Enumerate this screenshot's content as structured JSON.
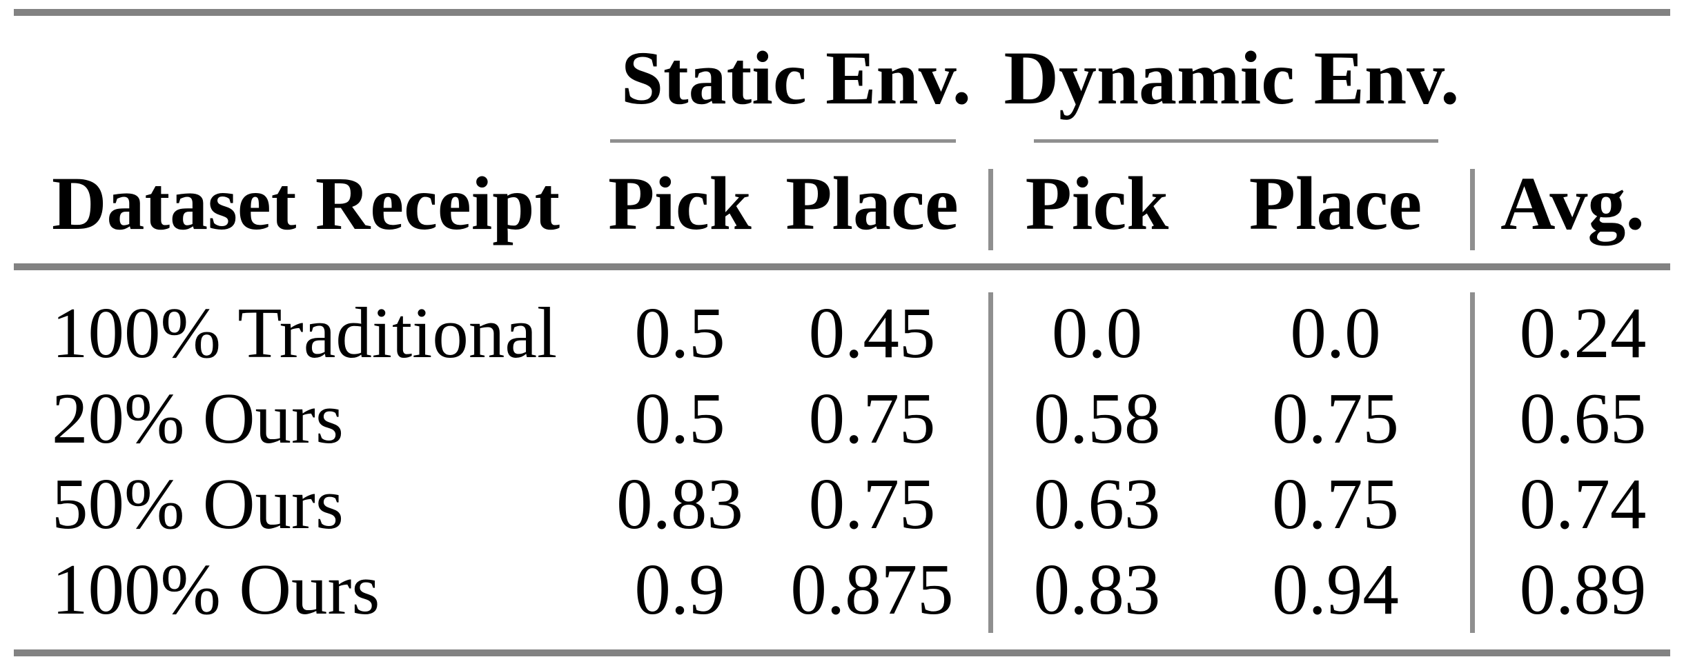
{
  "table": {
    "header": {
      "dataset": "Dataset Receipt",
      "static_group": "Static Env.",
      "dynamic_group": "Dynamic Env.",
      "static_pick": "Pick",
      "static_place": "Place",
      "dynamic_pick": "Pick",
      "dynamic_place": "Place",
      "avg": "Avg."
    },
    "rows": [
      {
        "label": "100% Traditional",
        "static_pick": "0.5",
        "static_place": "0.45",
        "dynamic_pick": "0.0",
        "dynamic_place": "0.0",
        "avg": "0.24"
      },
      {
        "label": "20% Ours",
        "static_pick": "0.5",
        "static_place": "0.75",
        "dynamic_pick": "0.58",
        "dynamic_place": "0.75",
        "avg": "0.65"
      },
      {
        "label": "50% Ours",
        "static_pick": "0.83",
        "static_place": "0.75",
        "dynamic_pick": "0.63",
        "dynamic_place": "0.75",
        "avg": "0.74"
      },
      {
        "label": "100% Ours",
        "static_pick": "0.9",
        "static_place": "0.875",
        "dynamic_pick": "0.83",
        "dynamic_place": "0.94",
        "avg": "0.89"
      }
    ],
    "colors": {
      "rule_heavy": "#828282",
      "rule_light": "#8f8f8f",
      "text": "#000000",
      "background": "#ffffff"
    }
  },
  "chart_data": {
    "type": "table",
    "title": "",
    "column_groups": [
      {
        "label": "Static Env.",
        "columns": [
          "Pick",
          "Place"
        ]
      },
      {
        "label": "Dynamic Env.",
        "columns": [
          "Pick",
          "Place"
        ]
      }
    ],
    "columns": [
      "Dataset Receipt",
      "Pick (Static)",
      "Place (Static)",
      "Pick (Dynamic)",
      "Place (Dynamic)",
      "Avg."
    ],
    "rows": [
      [
        "100% Traditional",
        0.5,
        0.45,
        0.0,
        0.0,
        0.24
      ],
      [
        "20% Ours",
        0.5,
        0.75,
        0.58,
        0.75,
        0.65
      ],
      [
        "50% Ours",
        0.83,
        0.75,
        0.63,
        0.75,
        0.74
      ],
      [
        "100% Ours",
        0.9,
        0.875,
        0.83,
        0.94,
        0.89
      ]
    ]
  }
}
